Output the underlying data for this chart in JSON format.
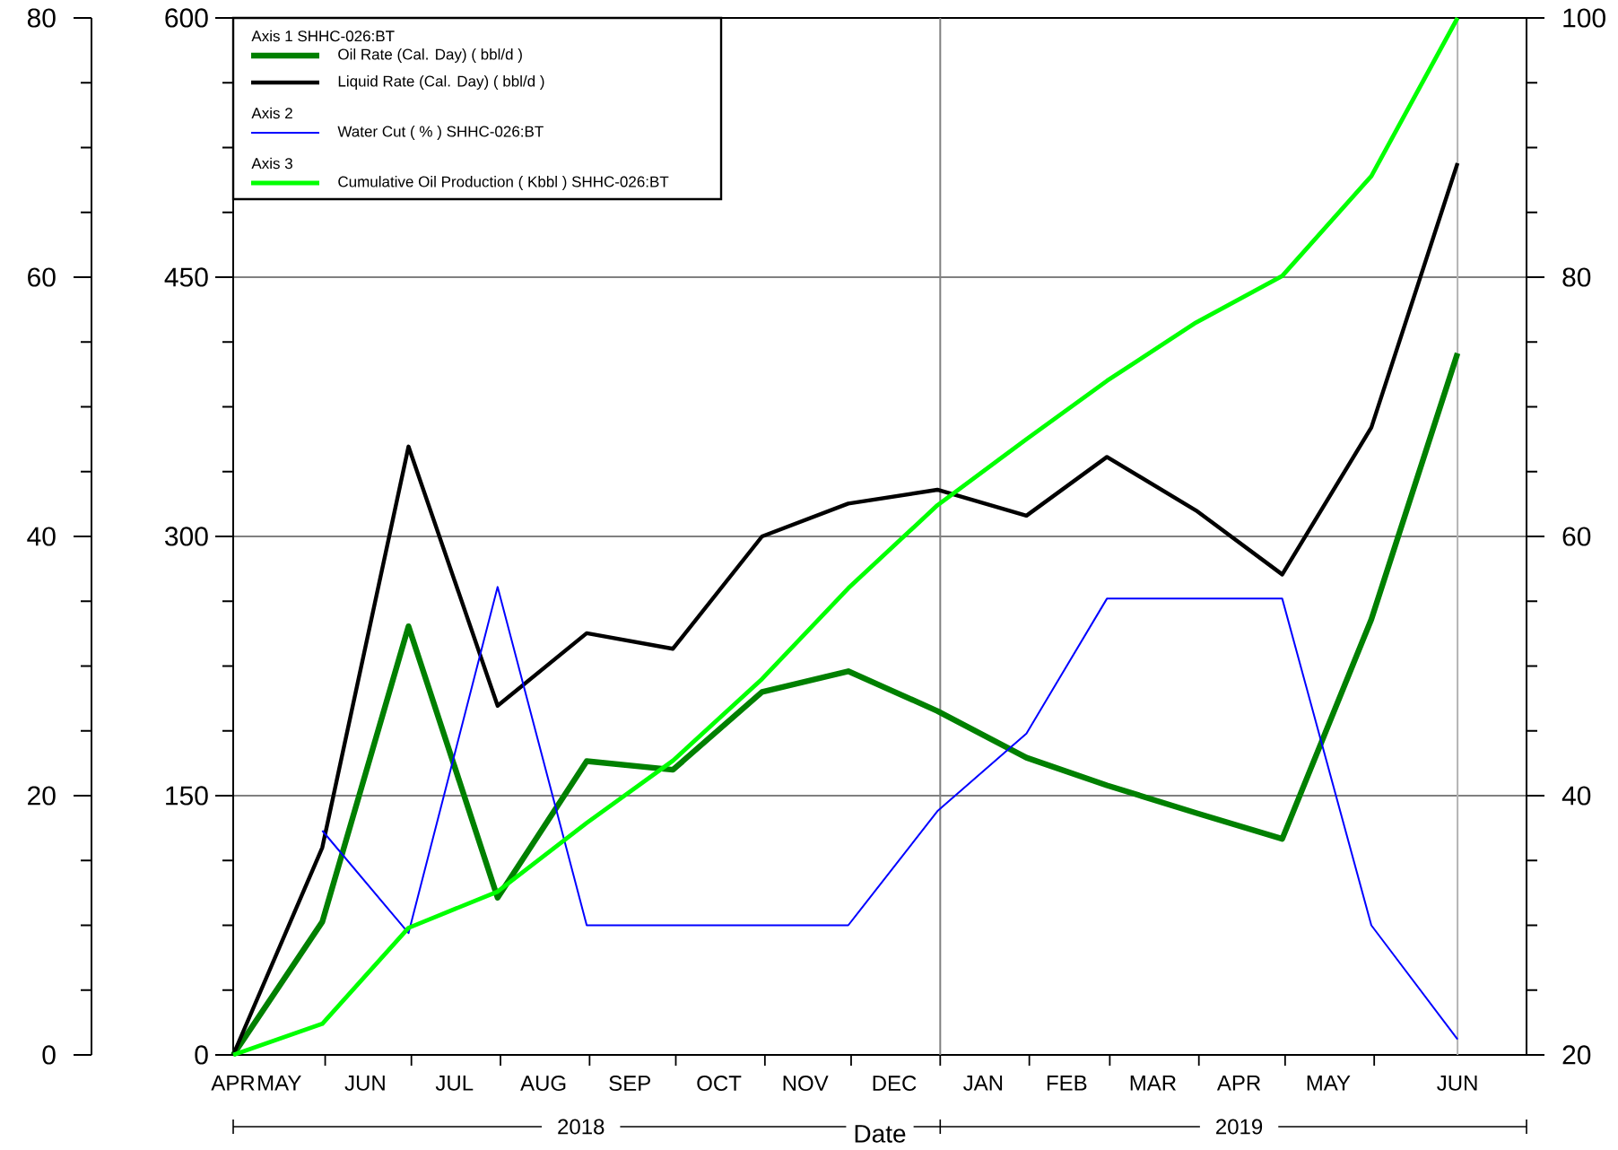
{
  "chart_data": {
    "type": "line",
    "annotations": [
      "Axis 1  SHHC-026:BT",
      "Axis 2",
      "Axis 3"
    ],
    "xlabel": "Date",
    "x": [
      "2018-04-30",
      "2018-05-31",
      "2018-06-30",
      "2018-07-31",
      "2018-08-31",
      "2018-09-30",
      "2018-10-31",
      "2018-11-30",
      "2018-12-31",
      "2019-01-31",
      "2019-02-28",
      "2019-03-31",
      "2019-04-30",
      "2019-05-31",
      "2019-06-30"
    ],
    "series": [
      {
        "name": "Oil Rate (Cal. Day) ( bbl/d )",
        "color": "#008000",
        "values": [
          0,
          77,
          248,
          91,
          170,
          165,
          210,
          222,
          199,
          172,
          156,
          140,
          125,
          252,
          406
        ]
      },
      {
        "name": "Liquid Rate (Cal. Day) ( bbl/d )",
        "color": "#000000",
        "values": [
          0,
          120,
          352,
          202,
          244,
          235,
          300,
          319,
          327,
          312,
          346,
          315,
          278,
          363,
          516
        ]
      },
      {
        "name": "Water Cut ( % ) SHHC-026:BT",
        "color": "#0000ff",
        "axis": "y2",
        "values": [
          null,
          17.3,
          9.4,
          36.1,
          10,
          10,
          10,
          10,
          18.8,
          24.8,
          35.2,
          35.2,
          35.2,
          10,
          1.2
        ]
      },
      {
        "name": "Cumulative Oil Production ( Kbbl ) SHHC-026:BT",
        "color": "#00ff00",
        "axis": "y3",
        "values": [
          20,
          22.4,
          29.8,
          32.6,
          37.9,
          42.7,
          49.0,
          56.0,
          62.4,
          67.5,
          72.0,
          76.5,
          80.1,
          87.8,
          100
        ]
      }
    ],
    "xlim": [
      "2018-04-30",
      "2019-07-24"
    ],
    "xticks": [
      {
        "value": "2018-04-30",
        "label": "APR"
      },
      {
        "value": "2018-05-16",
        "label": "MAY"
      },
      {
        "value": "2018-06-15",
        "label": "JUN"
      },
      {
        "value": "2018-07-16",
        "label": "JUL"
      },
      {
        "value": "2018-08-16",
        "label": "AUG"
      },
      {
        "value": "2018-09-15",
        "label": "SEP"
      },
      {
        "value": "2018-10-16",
        "label": "OCT"
      },
      {
        "value": "2018-11-15",
        "label": "NOV"
      },
      {
        "value": "2018-12-16",
        "label": "DEC"
      },
      {
        "value": "2019-01-16",
        "label": "JAN"
      },
      {
        "value": "2019-02-14",
        "label": "FEB"
      },
      {
        "value": "2019-03-16",
        "label": "MAR"
      },
      {
        "value": "2019-04-15",
        "label": "APR"
      },
      {
        "value": "2019-05-16",
        "label": "MAY"
      },
      {
        "value": "2019-06-30",
        "label": "JUN"
      },
      {
        "value": "2018-06-01",
        "label": null
      },
      {
        "value": "2018-07-01",
        "label": null
      },
      {
        "value": "2018-08-01",
        "label": null
      },
      {
        "value": "2018-09-01",
        "label": null
      },
      {
        "value": "2018-10-01",
        "label": null
      },
      {
        "value": "2018-11-01",
        "label": null
      },
      {
        "value": "2018-12-01",
        "label": null
      },
      {
        "value": "2019-01-01",
        "label": null
      },
      {
        "value": "2019-02-01",
        "label": null
      },
      {
        "value": "2019-03-01",
        "label": null
      },
      {
        "value": "2019-04-01",
        "label": null
      },
      {
        "value": "2019-05-01",
        "label": null
      },
      {
        "value": "2019-06-01",
        "label": null
      }
    ],
    "x2lim": [
      "2018-04-30",
      "2019-07-24"
    ],
    "x2ticks": [
      {
        "value": "2018-04-30",
        "label": null
      },
      {
        "value": "2018-08-29",
        "label": "2018"
      },
      {
        "value": "2019-01-01",
        "label": null
      },
      {
        "value": "2019-04-15",
        "label": "2019"
      },
      {
        "value": "2019-07-24",
        "label": null
      }
    ],
    "ylim": [
      0,
      600
    ],
    "yticks": [
      0,
      150,
      300,
      450,
      600
    ],
    "y2lim": [
      0,
      80
    ],
    "y2ticks": [
      0,
      20,
      40,
      60,
      80
    ],
    "y3lim": [
      20,
      100
    ],
    "y3ticks": [
      20,
      40,
      60,
      80,
      100
    ],
    "grid": "y",
    "ref_lines": [
      {
        "axis": "x",
        "value": "2019-01-01",
        "color": "#808080"
      },
      {
        "axis": "x",
        "value": "2019-06-30",
        "color": "#b4b4b4"
      }
    ],
    "legend": "top left",
    "marker": "none",
    "line_style": "solid"
  }
}
